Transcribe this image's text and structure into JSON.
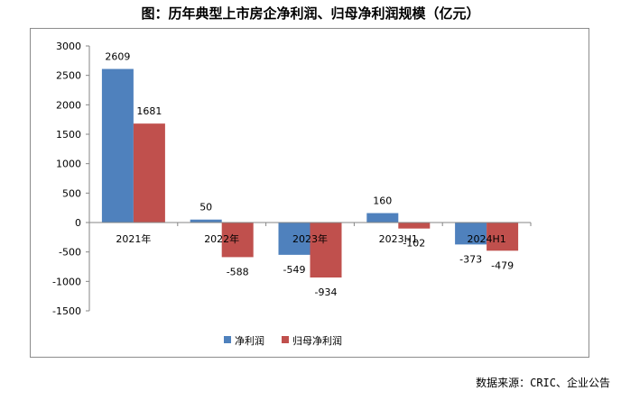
{
  "title": "图：历年典型上市房企净利润、归母净利润规模（亿元）",
  "source": "数据来源：CRIC、企业公告",
  "chart_data": {
    "type": "bar",
    "title": "图：历年典型上市房企净利润、归母净利润规模（亿元）",
    "categories": [
      "2021年",
      "2022年",
      "2023年",
      "2023H1",
      "2024H1"
    ],
    "series": [
      {
        "name": "净利润",
        "values": [
          2609,
          50,
          -549,
          160,
          -373
        ],
        "color": "#4f81bd"
      },
      {
        "name": "归母净利润",
        "values": [
          1681,
          -588,
          -934,
          -102,
          -479
        ],
        "color": "#c0504d"
      }
    ],
    "ylim": [
      -1500,
      3000
    ],
    "yticks": [
      3000,
      2500,
      2000,
      1500,
      1000,
      500,
      0,
      -500,
      -1000,
      -1500
    ],
    "xlabel": "",
    "ylabel": "",
    "legend": "bottom"
  }
}
